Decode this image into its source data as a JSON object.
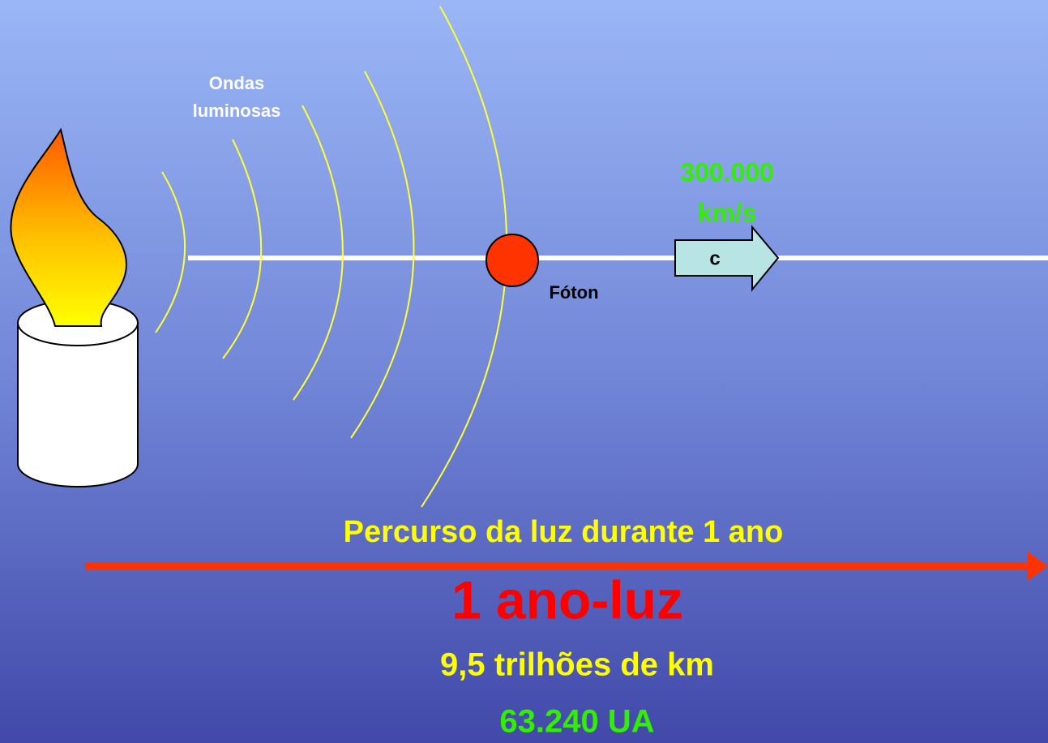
{
  "waves_label": {
    "lines": [
      "Ondas",
      "luminosas"
    ]
  },
  "speed_label": {
    "lines": [
      "300.000",
      "km/s"
    ]
  },
  "arrow_label": "c",
  "photon_label": "Fóton",
  "path_caption": "Percurso da luz durante 1 ano",
  "unit_title": "1 ano-luz",
  "distance_km": "9,5 trilhões de km",
  "distance_au": "63.240 UA"
}
